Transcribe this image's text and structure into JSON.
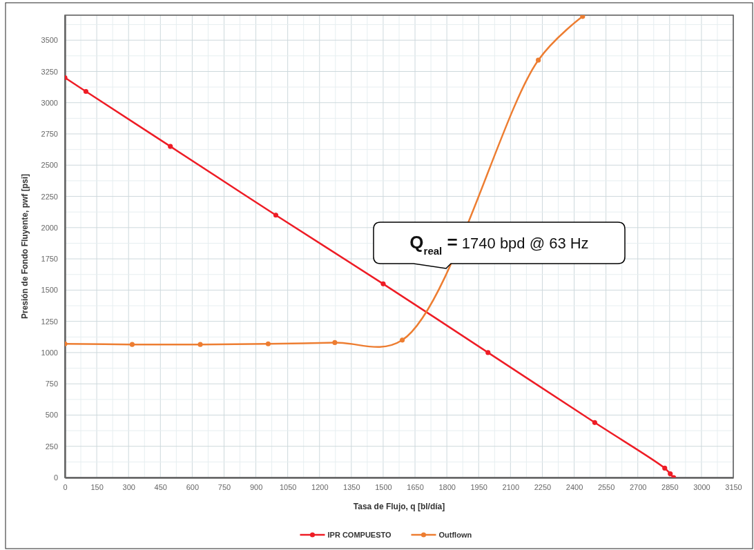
{
  "chart_data": {
    "type": "line",
    "xlabel": "Tasa de Flujo, q [bl/día]",
    "ylabel": "Presión de Fondo Fluyente, pwf [psi]",
    "xlim": [
      0,
      3150
    ],
    "xticks": [
      0,
      150,
      300,
      450,
      600,
      750,
      900,
      1050,
      1200,
      1350,
      1500,
      1650,
      1800,
      1950,
      2100,
      2250,
      2400,
      2550,
      2700,
      2850,
      3000,
      3150
    ],
    "ylim": [
      0,
      3700
    ],
    "yticks": [
      0,
      250,
      500,
      750,
      1000,
      1250,
      1500,
      1750,
      2000,
      2250,
      2500,
      2750,
      3000,
      3250,
      3500
    ],
    "grid": true,
    "legend": "bottom",
    "marker": "circle",
    "line_style": "solid",
    "series": [
      {
        "name": "IPR COMPUESTO",
        "color": "#ee1c25",
        "x": [
          0,
          99,
          497,
          994,
          1500,
          1994,
          2497,
          2827,
          2853,
          2869
        ],
        "values": [
          3200,
          3090,
          2650,
          2100,
          1550,
          1000,
          440,
          75,
          30,
          0
        ]
      },
      {
        "name": "Outflown",
        "color": "#ed7d31",
        "x": [
          0,
          317,
          638,
          958,
          1272,
          1590,
          2231,
          2440
        ],
        "values": [
          1070,
          1065,
          1065,
          1070,
          1080,
          1100,
          3340,
          3690
        ]
      }
    ],
    "annotations": [
      "Q$_{real}$ = 1740 bpd @ 63 Hz"
    ]
  }
}
